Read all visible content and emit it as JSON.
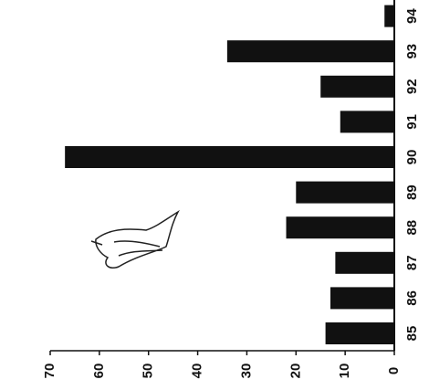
{
  "chart_data": {
    "type": "bar",
    "categories": [
      "85",
      "86",
      "87",
      "88",
      "89",
      "90",
      "91",
      "92",
      "93",
      "94"
    ],
    "values": [
      14,
      13,
      12,
      22,
      20,
      67,
      11,
      15,
      34,
      2
    ],
    "color": "#111111",
    "ylim": [
      0,
      70
    ],
    "yticks": [
      0,
      10,
      20,
      30,
      40,
      50,
      60,
      70
    ]
  }
}
